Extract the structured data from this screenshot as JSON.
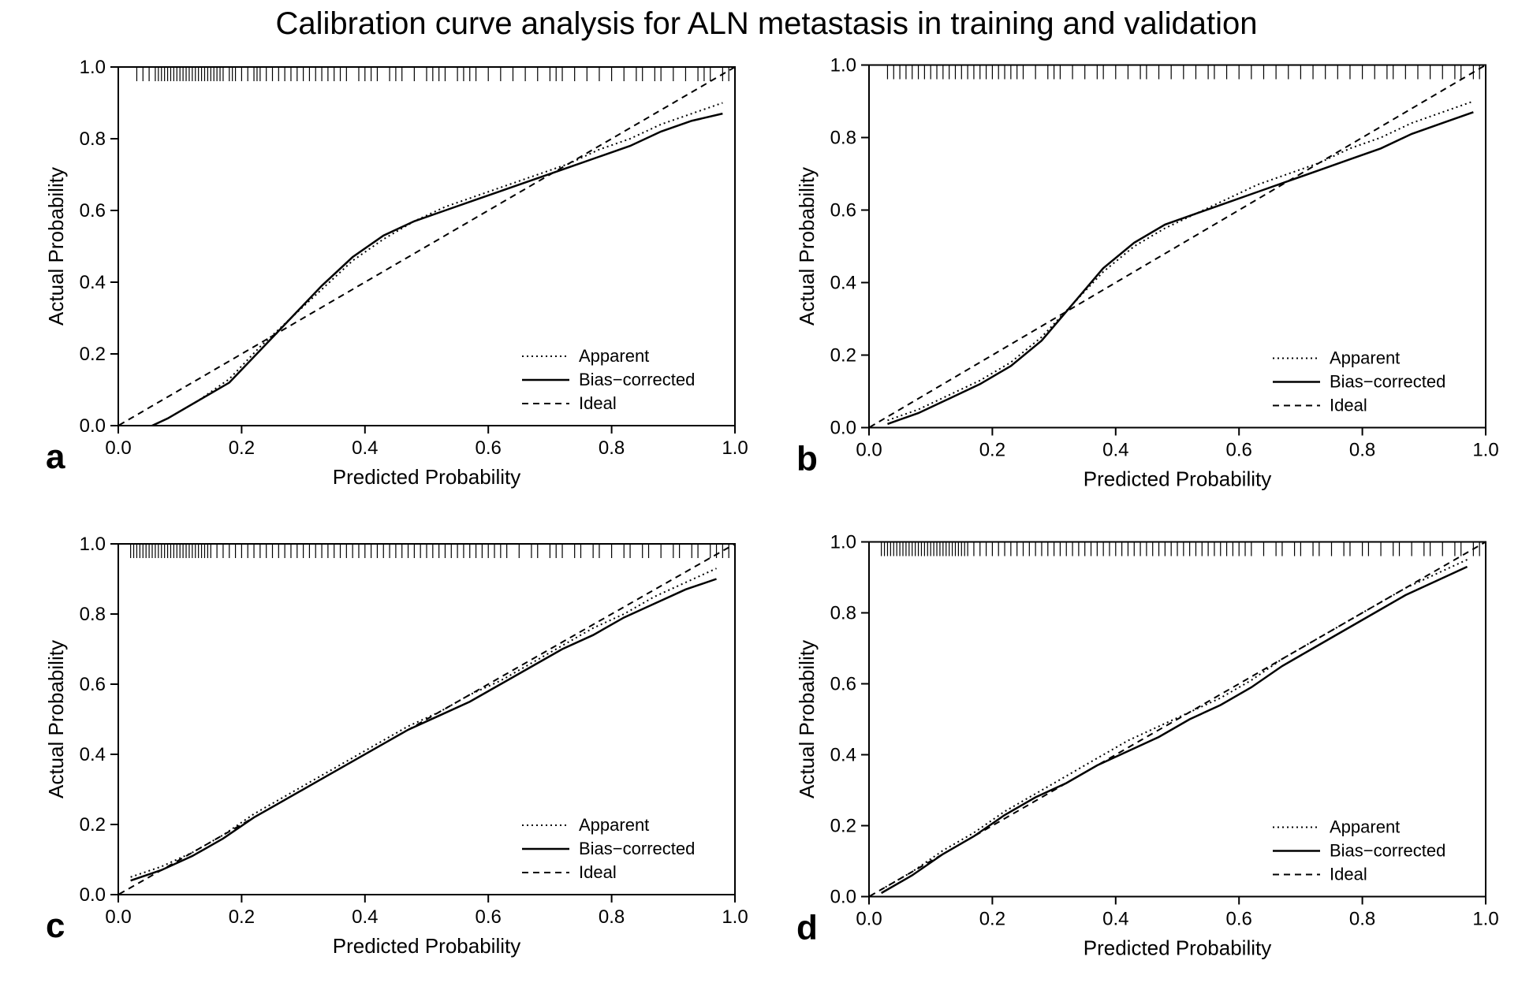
{
  "title": "Calibration curve analysis for ALN metastasis in training and validation",
  "title_fontsize": 40,
  "background_color": "#ffffff",
  "panels": [
    {
      "label": "a",
      "xlabel": "Predicted Probability",
      "ylabel": "Actual Probability",
      "xlim": [
        0.0,
        1.0
      ],
      "ylim": [
        0.0,
        1.0
      ],
      "xtick_step": 0.2,
      "ytick_step": 0.2,
      "label_fontsize": 26,
      "tick_fontsize": 24,
      "panel_label_fontsize": 44,
      "line_color": "#000000",
      "line_width_apparent": 2,
      "line_width_bias": 2.5,
      "line_width_ideal": 2,
      "dash_apparent": "2,4",
      "dash_ideal": "8,6",
      "legend": {
        "items": [
          "Apparent",
          "Bias−corrected",
          "Ideal"
        ],
        "fontsize": 22,
        "position": "bottom-right"
      },
      "rug_ticks": [
        0.03,
        0.04,
        0.05,
        0.06,
        0.065,
        0.07,
        0.075,
        0.08,
        0.085,
        0.09,
        0.095,
        0.1,
        0.105,
        0.11,
        0.115,
        0.12,
        0.125,
        0.13,
        0.135,
        0.14,
        0.145,
        0.15,
        0.155,
        0.16,
        0.165,
        0.17,
        0.18,
        0.185,
        0.19,
        0.2,
        0.21,
        0.22,
        0.225,
        0.23,
        0.24,
        0.25,
        0.26,
        0.27,
        0.28,
        0.29,
        0.3,
        0.31,
        0.32,
        0.33,
        0.34,
        0.35,
        0.36,
        0.37,
        0.39,
        0.4,
        0.41,
        0.42,
        0.44,
        0.45,
        0.46,
        0.48,
        0.5,
        0.51,
        0.52,
        0.53,
        0.55,
        0.56,
        0.57,
        0.58,
        0.6,
        0.62,
        0.64,
        0.66,
        0.68,
        0.7,
        0.71,
        0.72,
        0.74,
        0.76,
        0.78,
        0.8,
        0.82,
        0.84,
        0.85,
        0.87,
        0.88,
        0.9,
        0.92,
        0.94,
        0.95,
        0.96,
        0.98,
        0.99
      ],
      "ideal_line": [
        [
          -0.03,
          -0.03
        ],
        [
          1.03,
          1.03
        ]
      ],
      "apparent_line": [
        [
          0.03,
          -0.02
        ],
        [
          0.08,
          0.02
        ],
        [
          0.13,
          0.07
        ],
        [
          0.18,
          0.13
        ],
        [
          0.23,
          0.22
        ],
        [
          0.28,
          0.3
        ],
        [
          0.33,
          0.38
        ],
        [
          0.38,
          0.46
        ],
        [
          0.43,
          0.52
        ],
        [
          0.48,
          0.57
        ],
        [
          0.53,
          0.61
        ],
        [
          0.58,
          0.64
        ],
        [
          0.63,
          0.67
        ],
        [
          0.68,
          0.7
        ],
        [
          0.73,
          0.73
        ],
        [
          0.78,
          0.77
        ],
        [
          0.83,
          0.8
        ],
        [
          0.88,
          0.84
        ],
        [
          0.93,
          0.87
        ],
        [
          0.98,
          0.9
        ]
      ],
      "bias_line": [
        [
          0.03,
          -0.02
        ],
        [
          0.08,
          0.02
        ],
        [
          0.13,
          0.07
        ],
        [
          0.18,
          0.12
        ],
        [
          0.23,
          0.21
        ],
        [
          0.28,
          0.3
        ],
        [
          0.33,
          0.39
        ],
        [
          0.38,
          0.47
        ],
        [
          0.43,
          0.53
        ],
        [
          0.48,
          0.57
        ],
        [
          0.53,
          0.6
        ],
        [
          0.58,
          0.63
        ],
        [
          0.63,
          0.66
        ],
        [
          0.68,
          0.69
        ],
        [
          0.73,
          0.72
        ],
        [
          0.78,
          0.75
        ],
        [
          0.83,
          0.78
        ],
        [
          0.88,
          0.82
        ],
        [
          0.93,
          0.85
        ],
        [
          0.98,
          0.87
        ]
      ]
    },
    {
      "label": "b",
      "xlabel": "Predicted Probability",
      "ylabel": "Actual Probability",
      "xlim": [
        0.0,
        1.0
      ],
      "ylim": [
        0.0,
        1.0
      ],
      "xtick_step": 0.2,
      "ytick_step": 0.2,
      "label_fontsize": 26,
      "tick_fontsize": 24,
      "panel_label_fontsize": 44,
      "line_color": "#000000",
      "line_width_apparent": 2,
      "line_width_bias": 2.5,
      "line_width_ideal": 2,
      "dash_apparent": "2,4",
      "dash_ideal": "8,6",
      "legend": {
        "items": [
          "Apparent",
          "Bias−corrected",
          "Ideal"
        ],
        "fontsize": 22,
        "position": "bottom-right"
      },
      "rug_ticks": [
        0.03,
        0.04,
        0.05,
        0.06,
        0.07,
        0.08,
        0.09,
        0.1,
        0.11,
        0.12,
        0.13,
        0.14,
        0.15,
        0.16,
        0.17,
        0.18,
        0.19,
        0.2,
        0.21,
        0.22,
        0.23,
        0.24,
        0.25,
        0.27,
        0.29,
        0.3,
        0.31,
        0.33,
        0.35,
        0.37,
        0.38,
        0.4,
        0.42,
        0.44,
        0.45,
        0.47,
        0.49,
        0.51,
        0.53,
        0.55,
        0.56,
        0.58,
        0.6,
        0.62,
        0.64,
        0.66,
        0.68,
        0.7,
        0.72,
        0.74,
        0.76,
        0.78,
        0.8,
        0.82,
        0.84,
        0.85,
        0.87,
        0.89,
        0.91,
        0.93,
        0.95,
        0.96,
        0.98,
        0.99
      ],
      "ideal_line": [
        [
          -0.03,
          -0.03
        ],
        [
          1.03,
          1.03
        ]
      ],
      "apparent_line": [
        [
          0.03,
          0.02
        ],
        [
          0.08,
          0.05
        ],
        [
          0.13,
          0.09
        ],
        [
          0.18,
          0.13
        ],
        [
          0.23,
          0.18
        ],
        [
          0.28,
          0.25
        ],
        [
          0.33,
          0.34
        ],
        [
          0.38,
          0.43
        ],
        [
          0.43,
          0.5
        ],
        [
          0.48,
          0.55
        ],
        [
          0.53,
          0.59
        ],
        [
          0.58,
          0.63
        ],
        [
          0.63,
          0.67
        ],
        [
          0.68,
          0.7
        ],
        [
          0.73,
          0.73
        ],
        [
          0.78,
          0.77
        ],
        [
          0.83,
          0.8
        ],
        [
          0.88,
          0.84
        ],
        [
          0.93,
          0.87
        ],
        [
          0.98,
          0.9
        ]
      ],
      "bias_line": [
        [
          0.03,
          0.01
        ],
        [
          0.08,
          0.04
        ],
        [
          0.13,
          0.08
        ],
        [
          0.18,
          0.12
        ],
        [
          0.23,
          0.17
        ],
        [
          0.28,
          0.24
        ],
        [
          0.33,
          0.34
        ],
        [
          0.38,
          0.44
        ],
        [
          0.43,
          0.51
        ],
        [
          0.48,
          0.56
        ],
        [
          0.53,
          0.59
        ],
        [
          0.58,
          0.62
        ],
        [
          0.63,
          0.65
        ],
        [
          0.68,
          0.68
        ],
        [
          0.73,
          0.71
        ],
        [
          0.78,
          0.74
        ],
        [
          0.83,
          0.77
        ],
        [
          0.88,
          0.81
        ],
        [
          0.93,
          0.84
        ],
        [
          0.98,
          0.87
        ]
      ]
    },
    {
      "label": "c",
      "xlabel": "Predicted Probability",
      "ylabel": "Actual Probability",
      "xlim": [
        0.0,
        1.0
      ],
      "ylim": [
        0.0,
        1.0
      ],
      "xtick_step": 0.2,
      "ytick_step": 0.2,
      "label_fontsize": 26,
      "tick_fontsize": 24,
      "panel_label_fontsize": 44,
      "line_color": "#000000",
      "line_width_apparent": 2,
      "line_width_bias": 2.5,
      "line_width_ideal": 2,
      "dash_apparent": "2,4",
      "dash_ideal": "8,6",
      "legend": {
        "items": [
          "Apparent",
          "Bias−corrected",
          "Ideal"
        ],
        "fontsize": 22,
        "position": "bottom-right"
      },
      "rug_ticks": [
        0.02,
        0.025,
        0.03,
        0.035,
        0.04,
        0.045,
        0.05,
        0.055,
        0.06,
        0.065,
        0.07,
        0.075,
        0.08,
        0.085,
        0.09,
        0.095,
        0.1,
        0.105,
        0.11,
        0.115,
        0.12,
        0.125,
        0.13,
        0.135,
        0.14,
        0.145,
        0.15,
        0.16,
        0.17,
        0.18,
        0.19,
        0.2,
        0.21,
        0.22,
        0.23,
        0.24,
        0.25,
        0.26,
        0.27,
        0.28,
        0.29,
        0.3,
        0.31,
        0.32,
        0.33,
        0.34,
        0.35,
        0.36,
        0.37,
        0.38,
        0.39,
        0.4,
        0.41,
        0.42,
        0.43,
        0.44,
        0.45,
        0.46,
        0.47,
        0.48,
        0.49,
        0.5,
        0.51,
        0.52,
        0.53,
        0.54,
        0.55,
        0.56,
        0.57,
        0.58,
        0.59,
        0.6,
        0.61,
        0.62,
        0.63,
        0.65,
        0.67,
        0.68,
        0.7,
        0.71,
        0.72,
        0.74,
        0.75,
        0.77,
        0.78,
        0.8,
        0.82,
        0.83,
        0.85,
        0.86,
        0.88,
        0.9,
        0.91,
        0.93,
        0.94,
        0.96,
        0.97,
        0.98,
        0.99
      ],
      "ideal_line": [
        [
          -0.03,
          -0.03
        ],
        [
          1.03,
          1.03
        ]
      ],
      "apparent_line": [
        [
          0.02,
          0.05
        ],
        [
          0.07,
          0.08
        ],
        [
          0.12,
          0.12
        ],
        [
          0.17,
          0.17
        ],
        [
          0.22,
          0.23
        ],
        [
          0.27,
          0.28
        ],
        [
          0.32,
          0.33
        ],
        [
          0.37,
          0.38
        ],
        [
          0.42,
          0.43
        ],
        [
          0.47,
          0.48
        ],
        [
          0.52,
          0.52
        ],
        [
          0.57,
          0.57
        ],
        [
          0.62,
          0.61
        ],
        [
          0.67,
          0.66
        ],
        [
          0.72,
          0.71
        ],
        [
          0.77,
          0.76
        ],
        [
          0.82,
          0.8
        ],
        [
          0.87,
          0.85
        ],
        [
          0.92,
          0.89
        ],
        [
          0.97,
          0.93
        ]
      ],
      "bias_line": [
        [
          0.02,
          0.04
        ],
        [
          0.07,
          0.07
        ],
        [
          0.12,
          0.11
        ],
        [
          0.17,
          0.16
        ],
        [
          0.22,
          0.22
        ],
        [
          0.27,
          0.27
        ],
        [
          0.32,
          0.32
        ],
        [
          0.37,
          0.37
        ],
        [
          0.42,
          0.42
        ],
        [
          0.47,
          0.47
        ],
        [
          0.52,
          0.51
        ],
        [
          0.57,
          0.55
        ],
        [
          0.62,
          0.6
        ],
        [
          0.67,
          0.65
        ],
        [
          0.72,
          0.7
        ],
        [
          0.77,
          0.74
        ],
        [
          0.82,
          0.79
        ],
        [
          0.87,
          0.83
        ],
        [
          0.92,
          0.87
        ],
        [
          0.97,
          0.9
        ]
      ]
    },
    {
      "label": "d",
      "xlabel": "Predicted Probability",
      "ylabel": "Actual Probability",
      "xlim": [
        0.0,
        1.0
      ],
      "ylim": [
        0.0,
        1.0
      ],
      "xtick_step": 0.2,
      "ytick_step": 0.2,
      "label_fontsize": 26,
      "tick_fontsize": 24,
      "panel_label_fontsize": 44,
      "line_color": "#000000",
      "line_width_apparent": 2,
      "line_width_bias": 2.5,
      "line_width_ideal": 2,
      "dash_apparent": "2,4",
      "dash_ideal": "8,6",
      "legend": {
        "items": [
          "Apparent",
          "Bias−corrected",
          "Ideal"
        ],
        "fontsize": 22,
        "position": "bottom-right"
      },
      "rug_ticks": [
        0.02,
        0.025,
        0.03,
        0.035,
        0.04,
        0.045,
        0.05,
        0.055,
        0.06,
        0.065,
        0.07,
        0.075,
        0.08,
        0.085,
        0.09,
        0.095,
        0.1,
        0.105,
        0.11,
        0.115,
        0.12,
        0.125,
        0.13,
        0.135,
        0.14,
        0.145,
        0.15,
        0.155,
        0.16,
        0.17,
        0.18,
        0.19,
        0.2,
        0.21,
        0.22,
        0.23,
        0.24,
        0.25,
        0.26,
        0.27,
        0.28,
        0.29,
        0.3,
        0.31,
        0.32,
        0.33,
        0.34,
        0.35,
        0.36,
        0.37,
        0.38,
        0.39,
        0.4,
        0.41,
        0.42,
        0.43,
        0.44,
        0.45,
        0.46,
        0.47,
        0.48,
        0.49,
        0.5,
        0.51,
        0.52,
        0.53,
        0.54,
        0.55,
        0.56,
        0.57,
        0.58,
        0.59,
        0.6,
        0.61,
        0.62,
        0.64,
        0.66,
        0.67,
        0.69,
        0.7,
        0.72,
        0.73,
        0.75,
        0.77,
        0.78,
        0.8,
        0.81,
        0.83,
        0.85,
        0.86,
        0.88,
        0.9,
        0.91,
        0.93,
        0.95,
        0.96,
        0.98,
        0.99
      ],
      "ideal_line": [
        [
          -0.03,
          -0.03
        ],
        [
          1.03,
          1.03
        ]
      ],
      "apparent_line": [
        [
          0.02,
          0.02
        ],
        [
          0.07,
          0.07
        ],
        [
          0.12,
          0.13
        ],
        [
          0.17,
          0.18
        ],
        [
          0.22,
          0.24
        ],
        [
          0.27,
          0.29
        ],
        [
          0.32,
          0.34
        ],
        [
          0.37,
          0.39
        ],
        [
          0.42,
          0.44
        ],
        [
          0.47,
          0.48
        ],
        [
          0.52,
          0.52
        ],
        [
          0.57,
          0.56
        ],
        [
          0.62,
          0.61
        ],
        [
          0.67,
          0.67
        ],
        [
          0.72,
          0.72
        ],
        [
          0.77,
          0.77
        ],
        [
          0.82,
          0.82
        ],
        [
          0.87,
          0.87
        ],
        [
          0.92,
          0.91
        ],
        [
          0.97,
          0.95
        ]
      ],
      "bias_line": [
        [
          0.02,
          0.01
        ],
        [
          0.07,
          0.06
        ],
        [
          0.12,
          0.12
        ],
        [
          0.17,
          0.17
        ],
        [
          0.22,
          0.23
        ],
        [
          0.27,
          0.28
        ],
        [
          0.32,
          0.32
        ],
        [
          0.37,
          0.37
        ],
        [
          0.42,
          0.41
        ],
        [
          0.47,
          0.45
        ],
        [
          0.52,
          0.5
        ],
        [
          0.57,
          0.54
        ],
        [
          0.62,
          0.59
        ],
        [
          0.67,
          0.65
        ],
        [
          0.72,
          0.7
        ],
        [
          0.77,
          0.75
        ],
        [
          0.82,
          0.8
        ],
        [
          0.87,
          0.85
        ],
        [
          0.92,
          0.89
        ],
        [
          0.97,
          0.93
        ]
      ]
    }
  ]
}
